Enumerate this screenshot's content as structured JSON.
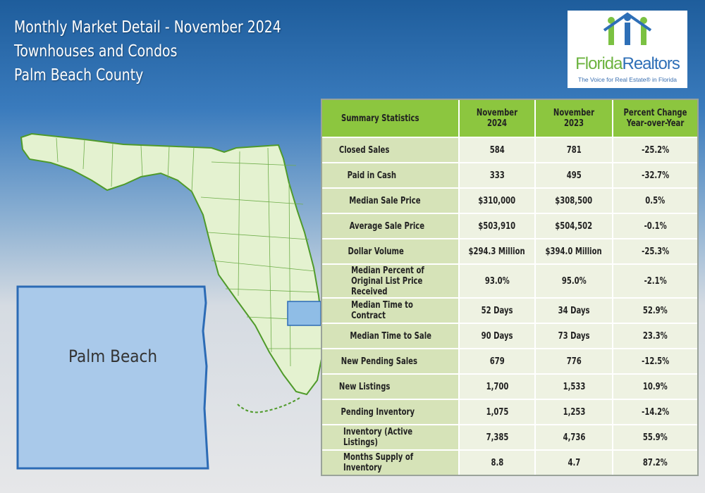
{
  "header": {
    "lines": [
      "Monthly Market Detail - November 2024",
      "Townhouses and Condos",
      "Palm Beach County"
    ]
  },
  "logo": {
    "name_parts": [
      "Florida",
      "Realtors"
    ],
    "tagline": "The Voice for Real Estate® in Florida"
  },
  "map": {
    "label": "Palm Beach"
  },
  "table": {
    "columns": [
      "Summary Statistics",
      "November 2024",
      "November 2023",
      "Percent Change Year-over-Year"
    ],
    "rows": [
      {
        "label": "Closed Sales",
        "values": [
          "584",
          "781",
          "-25.2%"
        ],
        "subrows": [
          {
            "label": "Paid in Cash",
            "values": [
              "333",
              "495",
              "-32.7%"
            ]
          },
          {
            "label": "Median Sale Price",
            "values": [
              "$310,000",
              "$308,500",
              "0.5%"
            ]
          },
          {
            "label": "Average Sale Price",
            "values": [
              "$503,910",
              "$504,502",
              "-0.1%"
            ]
          },
          {
            "label": "Dollar Volume",
            "values": [
              "$294.3 Million",
              "$394.0 Million",
              "-25.3%"
            ]
          },
          {
            "label": "Median Percent of Original List Price Received",
            "values": [
              "93.0%",
              "95.0%",
              "-2.1%"
            ]
          },
          {
            "label": "Median Time to Contract",
            "values": [
              "52 Days",
              "34 Days",
              "52.9%"
            ]
          },
          {
            "label": "Median Time to Sale",
            "values": [
              "90 Days",
              "73 Days",
              "23.3%"
            ]
          }
        ]
      },
      {
        "label": "New Pending Sales",
        "values": [
          "679",
          "776",
          "-12.5%"
        ]
      },
      {
        "label": "New Listings",
        "values": [
          "1,700",
          "1,533",
          "10.9%"
        ]
      },
      {
        "label": "Pending Inventory",
        "values": [
          "1,075",
          "1,253",
          "-14.2%"
        ]
      },
      {
        "label": "Inventory (Active Listings)",
        "values": [
          "7,385",
          "4,736",
          "55.9%"
        ]
      },
      {
        "label": "Months Supply of Inventory",
        "values": [
          "8.8",
          "4.7",
          "87.2%"
        ]
      }
    ]
  }
}
